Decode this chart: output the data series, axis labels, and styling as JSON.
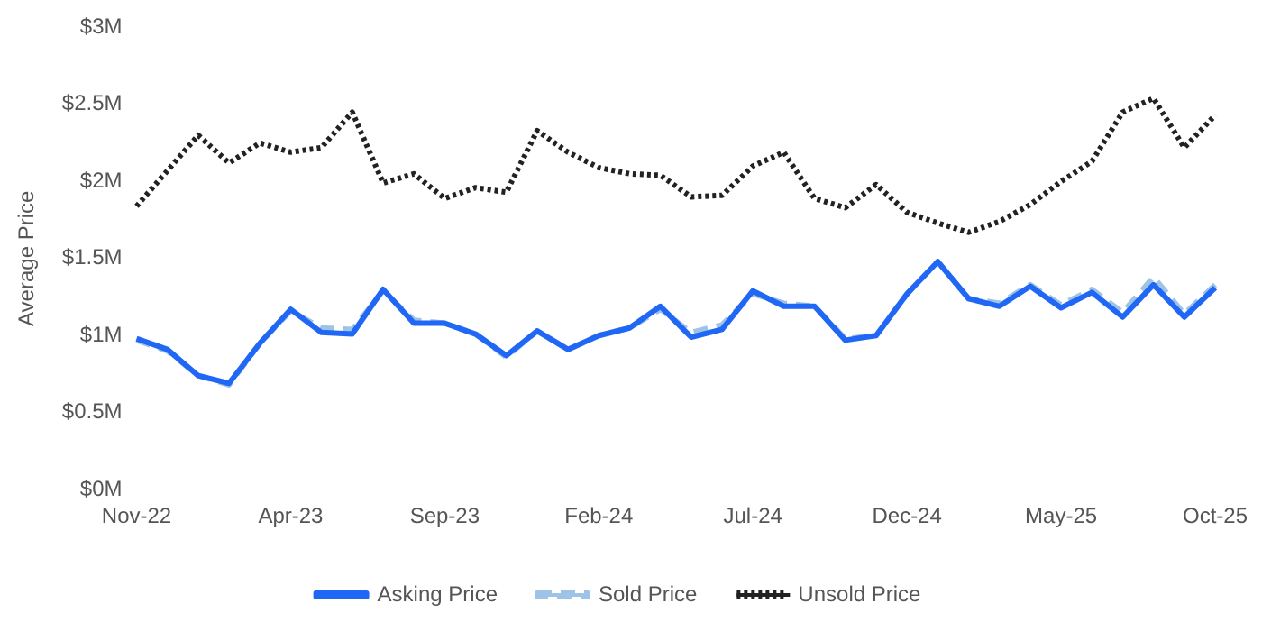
{
  "chart_data": {
    "type": "line",
    "ylabel": "Average Price",
    "categories": [
      "Nov-22",
      null,
      null,
      null,
      null,
      "Apr-23",
      null,
      null,
      null,
      null,
      "Sep-23",
      null,
      null,
      null,
      null,
      "Feb-24",
      null,
      null,
      null,
      null,
      "Jul-24",
      null,
      null,
      null,
      null,
      "Dec-24",
      null,
      null,
      null,
      null,
      "May-25",
      null,
      null,
      null,
      null,
      "Oct-25"
    ],
    "series": [
      {
        "name": "Asking Price",
        "color": "#2167f5",
        "line_style": "solid",
        "values": [
          0.98,
          0.91,
          0.74,
          0.69,
          0.95,
          1.17,
          1.02,
          1.01,
          1.3,
          1.08,
          1.08,
          1.01,
          0.87,
          1.03,
          0.91,
          1.0,
          1.05,
          1.19,
          0.99,
          1.04,
          1.29,
          1.19,
          1.19,
          0.97,
          1.0,
          1.27,
          1.48,
          1.24,
          1.19,
          1.32,
          1.18,
          1.28,
          1.12,
          1.33,
          1.12,
          1.31
        ]
      },
      {
        "name": "Sold Price",
        "color": "#9dc3e6",
        "line_style": "dashed",
        "values": [
          0.97,
          0.9,
          0.74,
          0.68,
          0.95,
          1.16,
          1.05,
          1.04,
          1.29,
          1.1,
          1.08,
          1.01,
          0.86,
          1.03,
          0.91,
          1.0,
          1.05,
          1.17,
          1.02,
          1.07,
          1.27,
          1.21,
          1.19,
          0.98,
          1.0,
          1.27,
          1.48,
          1.24,
          1.21,
          1.33,
          1.2,
          1.3,
          1.15,
          1.38,
          1.14,
          1.33
        ]
      },
      {
        "name": "Unsold Price",
        "color": "#222222",
        "line_style": "dotted",
        "values": [
          1.84,
          2.07,
          2.3,
          2.12,
          2.25,
          2.19,
          2.22,
          2.45,
          1.99,
          2.05,
          1.89,
          1.96,
          1.93,
          2.33,
          2.19,
          2.09,
          2.05,
          2.04,
          1.9,
          1.91,
          2.1,
          2.19,
          1.89,
          1.83,
          1.98,
          1.8,
          1.73,
          1.67,
          1.74,
          1.85,
          2.0,
          2.13,
          2.45,
          2.54,
          2.22,
          2.43
        ]
      }
    ],
    "ylim": [
      0,
      3
    ],
    "yticks": [
      {
        "value": 0,
        "label": "$0M"
      },
      {
        "value": 0.5,
        "label": "$0.5M"
      },
      {
        "value": 1,
        "label": "$1M"
      },
      {
        "value": 1.5,
        "label": "$1.5M"
      },
      {
        "value": 2,
        "label": "$2M"
      },
      {
        "value": 2.5,
        "label": "$2.5M"
      },
      {
        "value": 3,
        "label": "$3M"
      }
    ],
    "grid": false,
    "legend": "bottom",
    "marker": "none"
  }
}
